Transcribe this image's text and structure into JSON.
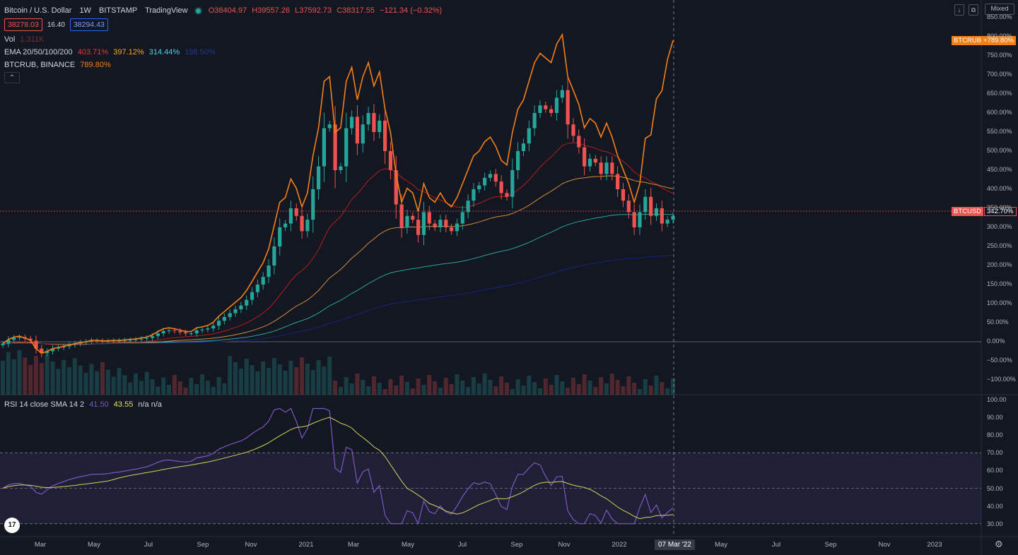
{
  "header": {
    "pair": "Bitcoin / U.S. Dollar",
    "interval": "1W",
    "exchange": "BITSTAMP",
    "brand": "TradingView",
    "open": "O38404.97",
    "high": "H39557.26",
    "low": "L37592.73",
    "close": "C38317.55",
    "change": "−121.34 (−0.32%)",
    "bid": "38278.03",
    "spread": "16.40",
    "ask": "38294.43"
  },
  "legend": {
    "vol_label": "Vol",
    "vol_value": "1.311K",
    "ema_label": "EMA 20/50/100/200",
    "ema20": "403.71%",
    "ema50": "397.12%",
    "ema100": "314.44%",
    "ema200": "198.50%",
    "compare_label": "BTCRUB, BINANCE",
    "compare_value": "789.80%",
    "collapse": "⌃"
  },
  "rsi_legend": {
    "label": "RSI 14 close SMA 14 2",
    "rsi": "41.50",
    "sma": "43.55",
    "bands": "n/a n/a"
  },
  "controls": {
    "scale_mode": "Mixed",
    "down_icon": "↓",
    "maximize_icon": "⧉",
    "settings_icon": "⚙"
  },
  "price_tags": {
    "btcrub_name": "BTCRUB",
    "btcrub_value": "+789.80%",
    "btcusd_name": "BTCUSD",
    "btcusd_value": "342.70%"
  },
  "crosshair_date": "07 Mar '22",
  "logo_text": "17",
  "colors": {
    "bg": "#131722",
    "up": "#26a69a",
    "down": "#ef5350",
    "btcrub": "#f57f17",
    "ema20": "#b71c1c",
    "ema50": "#d68b3a",
    "ema100": "#26a69a",
    "ema200": "#1a237e",
    "rsi": "#7e57c2",
    "rsi_sma": "#d4d45a"
  },
  "y_axis": [
    "850.00%",
    "800.00%",
    "750.00%",
    "700.00%",
    "650.00%",
    "600.00%",
    "550.00%",
    "500.00%",
    "450.00%",
    "400.00%",
    "350.00%",
    "300.00%",
    "250.00%",
    "200.00%",
    "150.00%",
    "100.00%",
    "50.00%",
    "0.00%",
    "−50.00%",
    "−100.00%"
  ],
  "rsi_axis": [
    "100.00",
    "90.00",
    "80.00",
    "70.00",
    "60.00",
    "50.00",
    "40.00",
    "30.00"
  ],
  "x_axis": [
    "Mar",
    "May",
    "Jul",
    "Sep",
    "Nov",
    "2021",
    "Mar",
    "May",
    "Jul",
    "Sep",
    "Nov",
    "2022",
    "May",
    "Jul",
    "Sep",
    "Nov",
    "2023"
  ]
}
